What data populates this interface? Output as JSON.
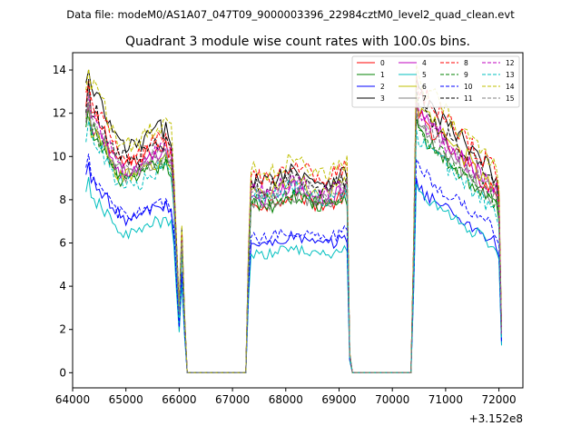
{
  "chart_data": {
    "type": "line",
    "suptitle": "Data file: modeM0/AS1A07_047T09_9000003396_22984cztM0_level2_quad_clean.evt",
    "title": "Quadrant 3 module wise count rates with 100.0s bins.",
    "xlabel": "",
    "ylabel": "",
    "x_offset_label": "+3.152e8",
    "xlim": [
      64000,
      72450
    ],
    "ylim": [
      -0.7,
      14.8
    ],
    "x_ticks": [
      64000,
      65000,
      66000,
      67000,
      68000,
      69000,
      70000,
      71000,
      72000
    ],
    "x_tick_labels": [
      "64000",
      "65000",
      "66000",
      "67000",
      "68000",
      "69000",
      "70000",
      "71000",
      "72000"
    ],
    "y_ticks": [
      0,
      2,
      4,
      6,
      8,
      10,
      12,
      14
    ],
    "y_tick_labels": [
      "0",
      "2",
      "4",
      "6",
      "8",
      "10",
      "12",
      "14"
    ],
    "legend_position": "top-right",
    "segments": [
      {
        "x_start": 64250,
        "x_end": 66050
      },
      {
        "x_start": 67350,
        "x_end": 69150
      },
      {
        "x_start": 70450,
        "x_end": 72050
      }
    ],
    "series": [
      {
        "name": "0",
        "color": "#ff0000",
        "style": "solid",
        "levels": [
          10.0,
          8.0,
          10.0
        ]
      },
      {
        "name": "1",
        "color": "#008000",
        "style": "solid",
        "levels": [
          9.2,
          7.9,
          9.3
        ]
      },
      {
        "name": "2",
        "color": "#0000ff",
        "style": "solid",
        "levels": [
          7.4,
          6.1,
          7.2
        ]
      },
      {
        "name": "3",
        "color": "#000000",
        "style": "solid",
        "levels": [
          10.8,
          9.1,
          10.9
        ]
      },
      {
        "name": "4",
        "color": "#bf00bf",
        "style": "solid",
        "levels": [
          9.6,
          8.3,
          10.2
        ]
      },
      {
        "name": "5",
        "color": "#00bfbf",
        "style": "solid",
        "levels": [
          6.7,
          5.6,
          7.0
        ]
      },
      {
        "name": "6",
        "color": "#bfbf00",
        "style": "solid",
        "levels": [
          9.4,
          8.6,
          10.3
        ]
      },
      {
        "name": "7",
        "color": "#808080",
        "style": "solid",
        "levels": [
          9.5,
          8.0,
          9.6
        ]
      },
      {
        "name": "8",
        "color": "#ff0000",
        "style": "dashed",
        "levels": [
          10.3,
          9.3,
          11.1
        ]
      },
      {
        "name": "9",
        "color": "#008000",
        "style": "dashed",
        "levels": [
          9.3,
          8.1,
          9.5
        ]
      },
      {
        "name": "10",
        "color": "#0000ff",
        "style": "dashed",
        "levels": [
          7.5,
          6.4,
          7.9
        ]
      },
      {
        "name": "11",
        "color": "#000000",
        "style": "dashed",
        "levels": [
          10.2,
          8.8,
          10.5
        ]
      },
      {
        "name": "12",
        "color": "#bf00bf",
        "style": "dashed",
        "levels": [
          9.8,
          8.6,
          10.0
        ]
      },
      {
        "name": "13",
        "color": "#00bfbf",
        "style": "dashed",
        "levels": [
          9.0,
          8.3,
          9.0
        ]
      },
      {
        "name": "14",
        "color": "#bfbf00",
        "style": "dashed",
        "levels": [
          11.0,
          9.5,
          11.4
        ]
      },
      {
        "name": "15",
        "color": "#808080",
        "style": "dashed",
        "levels": [
          9.7,
          8.5,
          9.9
        ]
      }
    ]
  }
}
